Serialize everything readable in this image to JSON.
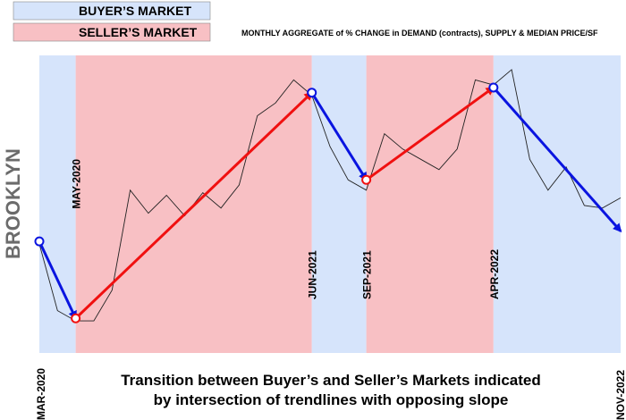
{
  "legend": {
    "buyers_label": "BUYER’S MARKET",
    "sellers_label": "SELLER’S MARKET"
  },
  "colors": {
    "buyers": "#d6e4fb",
    "sellers": "#f8c0c4",
    "buyer_arrow": "#0a14e0",
    "seller_arrow": "#f01010",
    "line": "#222222"
  },
  "chart_data": {
    "type": "line",
    "title": "MONTHLY AGGREGATE of % CHANGE in DEMAND (contracts), SUPPLY & MEDIAN PRICE/SF",
    "side_title": "BROOKLYN",
    "caption_line1": "Transition between Buyer’s and Seller’s Markets indicated",
    "caption_line2": "by intersection of trendlines with opposing slope",
    "x_start_label": "MAR-2020",
    "x_end_label": "NOV-2022",
    "x_range": [
      "2020-03",
      "2022-11"
    ],
    "y_range": [
      0,
      100
    ],
    "grid": false,
    "regions": [
      {
        "market": "buyer",
        "start": "2020-03",
        "end": "2020-05"
      },
      {
        "market": "seller",
        "start": "2020-05",
        "end": "2021-06"
      },
      {
        "market": "buyer",
        "start": "2021-06",
        "end": "2021-09"
      },
      {
        "market": "seller",
        "start": "2021-09",
        "end": "2022-04"
      },
      {
        "market": "buyer",
        "start": "2022-04",
        "end": "2022-11"
      }
    ],
    "events": [
      {
        "label": "MAY-2020",
        "date": "2020-05",
        "label_position": "top"
      },
      {
        "label": "JUN-2021",
        "date": "2021-06",
        "label_position": "bottom"
      },
      {
        "label": "SEP-2021",
        "date": "2021-09",
        "label_position": "bottom"
      },
      {
        "label": "APR-2022",
        "date": "2022-04",
        "label_position": "bottom"
      }
    ],
    "series": [
      {
        "x": [
          "2020-03",
          "2020-04",
          "2020-05",
          "2020-06",
          "2020-07",
          "2020-08",
          "2020-09",
          "2020-10",
          "2020-11",
          "2020-12",
          "2021-01",
          "2021-02",
          "2021-03",
          "2021-04",
          "2021-05",
          "2021-06",
          "2021-07",
          "2021-08",
          "2021-09",
          "2021-10",
          "2021-11",
          "2021-12",
          "2022-01",
          "2022-02",
          "2022-03",
          "2022-04",
          "2022-05",
          "2022-06",
          "2022-07",
          "2022-08",
          "2022-09",
          "2022-10",
          "2022-11"
        ],
        "y": [
          31,
          5,
          1,
          1,
          13,
          52,
          43,
          50,
          42,
          51,
          45,
          54,
          81,
          86,
          95,
          89,
          69,
          56,
          52,
          74,
          68,
          64,
          60,
          68,
          95,
          93,
          99,
          64,
          52,
          61,
          46,
          45,
          49
        ]
      }
    ],
    "trendlines": [
      {
        "market": "buyer",
        "start": {
          "x": "2020-03",
          "y": 32
        },
        "end": {
          "x": "2020-05",
          "y": 2
        }
      },
      {
        "market": "seller",
        "start": {
          "x": "2020-05",
          "y": 2
        },
        "end": {
          "x": "2021-06",
          "y": 90
        }
      },
      {
        "market": "buyer",
        "start": {
          "x": "2021-06",
          "y": 90
        },
        "end": {
          "x": "2021-09",
          "y": 56
        }
      },
      {
        "market": "seller",
        "start": {
          "x": "2021-09",
          "y": 56
        },
        "end": {
          "x": "2022-04",
          "y": 92
        }
      },
      {
        "market": "buyer",
        "start": {
          "x": "2022-04",
          "y": 92
        },
        "end": {
          "x": "2022-11",
          "y": 36
        }
      }
    ]
  }
}
